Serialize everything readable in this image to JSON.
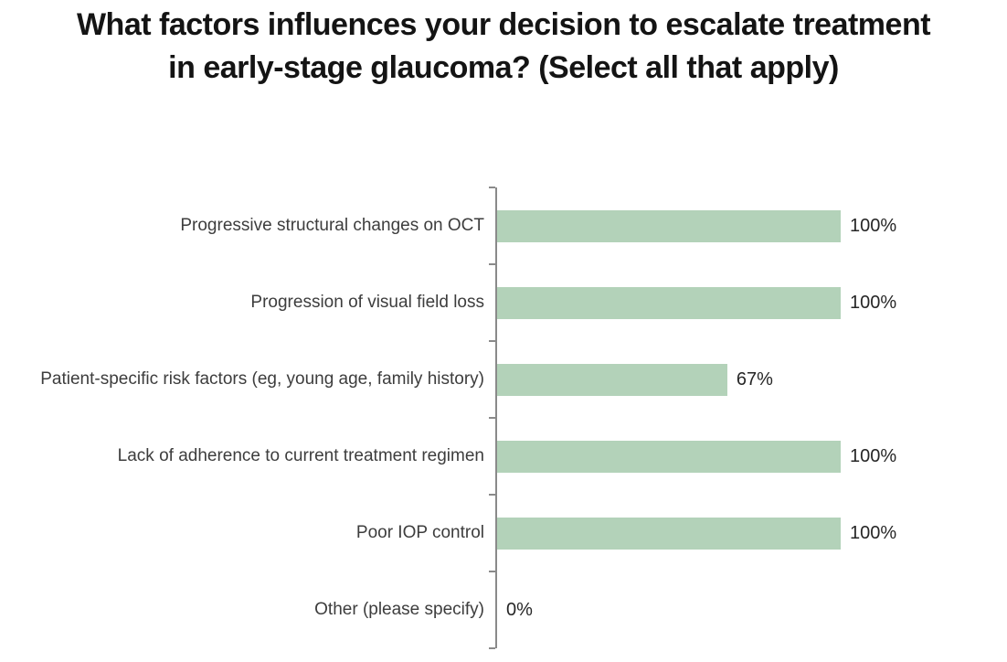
{
  "title_lines": [
    "What factors influences your decision to escalate treatment",
    "in early-stage glaucoma? (Select all that apply)"
  ],
  "colors": {
    "bar_fill": "#b3d2b9",
    "axis_line": "#8a8a8a",
    "category_text": "#3d3d3d",
    "value_text": "#262626",
    "title_text": "#141414",
    "background": "#ffffff"
  },
  "chart_data": {
    "type": "bar",
    "orientation": "horizontal",
    "title": "What factors influences your decision to escalate treatment in early-stage glaucoma? (Select all that apply)",
    "categories": [
      "Progressive structural changes on OCT",
      "Progression of visual field loss",
      "Patient-specific risk factors (eg, young age, family history)",
      "Lack of adherence to current treatment regimen",
      "Poor IOP control",
      "Other (please specify)"
    ],
    "values": [
      100,
      100,
      67,
      100,
      100,
      0
    ],
    "value_labels": [
      "100%",
      "100%",
      "67%",
      "100%",
      "100%",
      "0%"
    ],
    "xlabel": "",
    "ylabel": "",
    "xlim": [
      0,
      100
    ],
    "grid": false,
    "legend": false,
    "data_labels_position": "end-of-bar"
  }
}
